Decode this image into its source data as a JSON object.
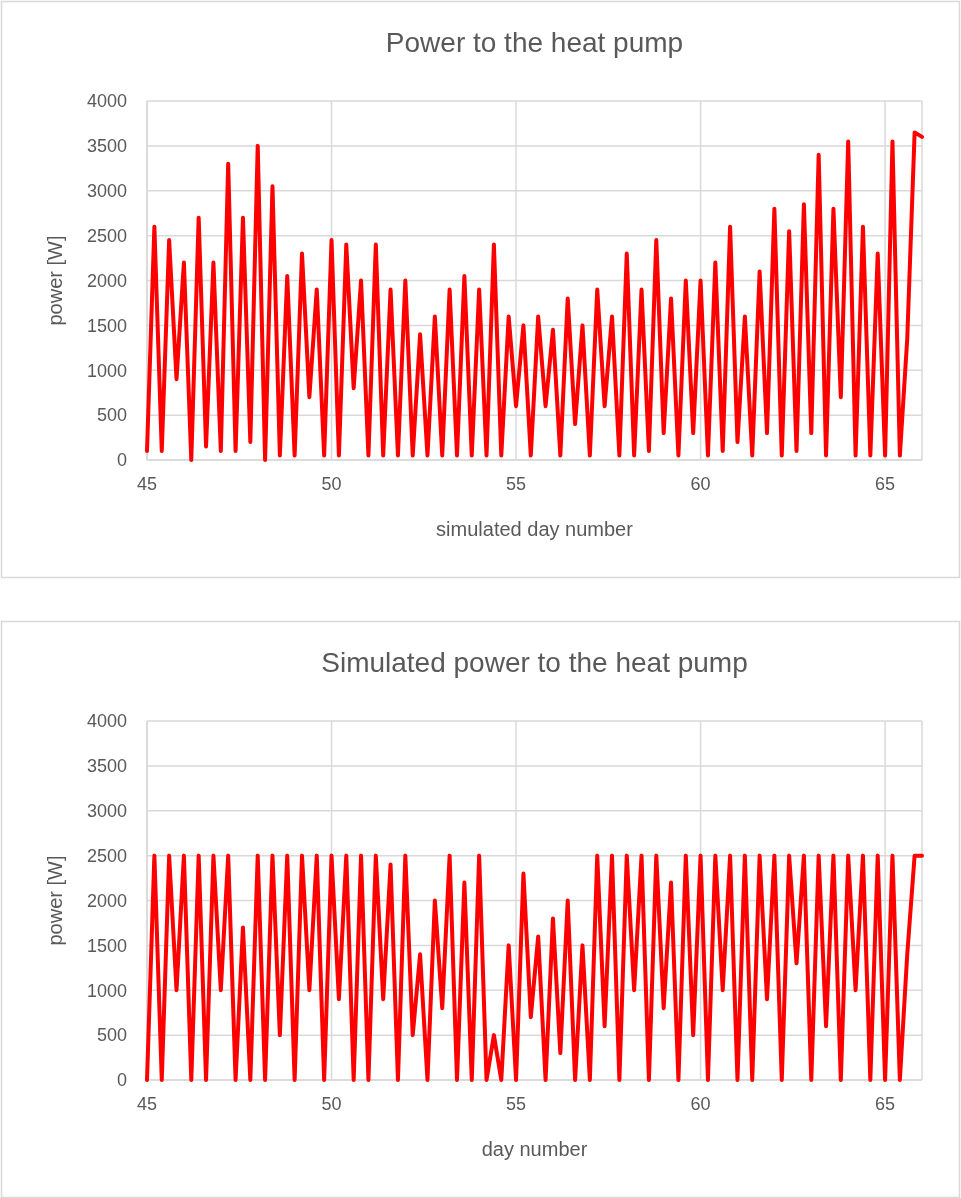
{
  "chart_data": [
    {
      "type": "line",
      "title": "Power to the heat pump",
      "xlabel": "simulated day number",
      "ylabel": "power [W]",
      "x": [
        45.0,
        45.2,
        45.4,
        45.6,
        45.8,
        46.0,
        46.2,
        46.4,
        46.6,
        46.8,
        47.0,
        47.2,
        47.4,
        47.6,
        47.8,
        48.0,
        48.2,
        48.4,
        48.6,
        48.8,
        49.0,
        49.2,
        49.4,
        49.6,
        49.8,
        50.0,
        50.2,
        50.4,
        50.6,
        50.8,
        51.0,
        51.2,
        51.4,
        51.6,
        51.8,
        52.0,
        52.2,
        52.4,
        52.6,
        52.8,
        53.0,
        53.2,
        53.4,
        53.6,
        53.8,
        54.0,
        54.2,
        54.4,
        54.6,
        54.8,
        55.0,
        55.2,
        55.4,
        55.6,
        55.8,
        56.0,
        56.2,
        56.4,
        56.6,
        56.8,
        57.0,
        57.2,
        57.4,
        57.6,
        57.8,
        58.0,
        58.2,
        58.4,
        58.6,
        58.8,
        59.0,
        59.2,
        59.4,
        59.6,
        59.8,
        60.0,
        60.2,
        60.4,
        60.6,
        60.8,
        61.0,
        61.2,
        61.4,
        61.6,
        61.8,
        62.0,
        62.2,
        62.4,
        62.6,
        62.8,
        63.0,
        63.2,
        63.4,
        63.6,
        63.8,
        64.0,
        64.2,
        64.4,
        64.6,
        64.8,
        65.0,
        65.2,
        65.4,
        65.6,
        65.8,
        66.0
      ],
      "series": [
        {
          "color": "#ff0000",
          "values": [
            100,
            2600,
            100,
            2450,
            900,
            2200,
            0,
            2700,
            150,
            2200,
            100,
            3300,
            100,
            2700,
            200,
            3500,
            0,
            3050,
            50,
            2050,
            50,
            2300,
            700,
            1900,
            50,
            2450,
            50,
            2400,
            800,
            2000,
            50,
            2400,
            50,
            1900,
            50,
            2000,
            50,
            1400,
            50,
            1600,
            50,
            1900,
            50,
            2050,
            50,
            1900,
            50,
            2400,
            50,
            1600,
            600,
            1500,
            50,
            1600,
            600,
            1450,
            50,
            1800,
            400,
            1500,
            50,
            1900,
            600,
            1600,
            50,
            2300,
            50,
            1900,
            100,
            2450,
            300,
            1800,
            50,
            2000,
            300,
            2000,
            50,
            2200,
            100,
            2600,
            200,
            1600,
            50,
            2100,
            300,
            2800,
            50,
            2550,
            100,
            2850,
            300,
            3400,
            50,
            2800,
            700,
            3550,
            50,
            2600,
            50,
            2300,
            50,
            3550,
            50,
            1350,
            3650,
            3600
          ]
        }
      ],
      "xlim": [
        45,
        66
      ],
      "ylim": [
        0,
        4000
      ],
      "xticks": [
        45,
        50,
        55,
        60,
        65
      ],
      "yticks": [
        0,
        500,
        1000,
        1500,
        2000,
        2500,
        3000,
        3500,
        4000
      ],
      "grid": true
    },
    {
      "type": "line",
      "title": "Simulated power to the heat pump",
      "xlabel": "day number",
      "ylabel": "power [W]",
      "x": [
        45.0,
        45.2,
        45.4,
        45.6,
        45.8,
        46.0,
        46.2,
        46.4,
        46.6,
        46.8,
        47.0,
        47.2,
        47.4,
        47.6,
        47.8,
        48.0,
        48.2,
        48.4,
        48.6,
        48.8,
        49.0,
        49.2,
        49.4,
        49.6,
        49.8,
        50.0,
        50.2,
        50.4,
        50.6,
        50.8,
        51.0,
        51.2,
        51.4,
        51.6,
        51.8,
        52.0,
        52.2,
        52.4,
        52.6,
        52.8,
        53.0,
        53.2,
        53.4,
        53.6,
        53.8,
        54.0,
        54.2,
        54.4,
        54.6,
        54.8,
        55.0,
        55.2,
        55.4,
        55.6,
        55.8,
        56.0,
        56.2,
        56.4,
        56.6,
        56.8,
        57.0,
        57.2,
        57.4,
        57.6,
        57.8,
        58.0,
        58.2,
        58.4,
        58.6,
        58.8,
        59.0,
        59.2,
        59.4,
        59.6,
        59.8,
        60.0,
        60.2,
        60.4,
        60.6,
        60.8,
        61.0,
        61.2,
        61.4,
        61.6,
        61.8,
        62.0,
        62.2,
        62.4,
        62.6,
        62.8,
        63.0,
        63.2,
        63.4,
        63.6,
        63.8,
        64.0,
        64.2,
        64.4,
        64.6,
        64.8,
        65.0,
        65.2,
        65.4,
        65.6,
        65.8,
        66.0
      ],
      "series": [
        {
          "color": "#ff0000",
          "values": [
            0,
            2500,
            0,
            2500,
            1000,
            2500,
            0,
            2500,
            0,
            2500,
            1000,
            2500,
            0,
            1700,
            0,
            2500,
            0,
            2500,
            500,
            2500,
            0,
            2500,
            1000,
            2500,
            0,
            2500,
            900,
            2500,
            0,
            2500,
            0,
            2500,
            900,
            2400,
            0,
            2500,
            500,
            1400,
            0,
            2000,
            800,
            2500,
            0,
            2200,
            0,
            2500,
            0,
            500,
            0,
            1500,
            0,
            2300,
            700,
            1600,
            0,
            1800,
            300,
            2000,
            0,
            1500,
            0,
            2500,
            600,
            2500,
            0,
            2500,
            1000,
            2500,
            0,
            2500,
            800,
            2200,
            0,
            2500,
            500,
            2500,
            0,
            2500,
            1000,
            2500,
            0,
            2500,
            0,
            2500,
            900,
            2500,
            0,
            2500,
            1300,
            2500,
            0,
            2500,
            600,
            2500,
            0,
            2500,
            1000,
            2500,
            0,
            2500,
            0,
            2500,
            0,
            1400,
            2500,
            2500
          ]
        }
      ],
      "xlim": [
        45,
        66
      ],
      "ylim": [
        0,
        4000
      ],
      "xticks": [
        45,
        50,
        55,
        60,
        65
      ],
      "yticks": [
        0,
        500,
        1000,
        1500,
        2000,
        2500,
        3000,
        3500,
        4000
      ],
      "grid": true
    }
  ]
}
